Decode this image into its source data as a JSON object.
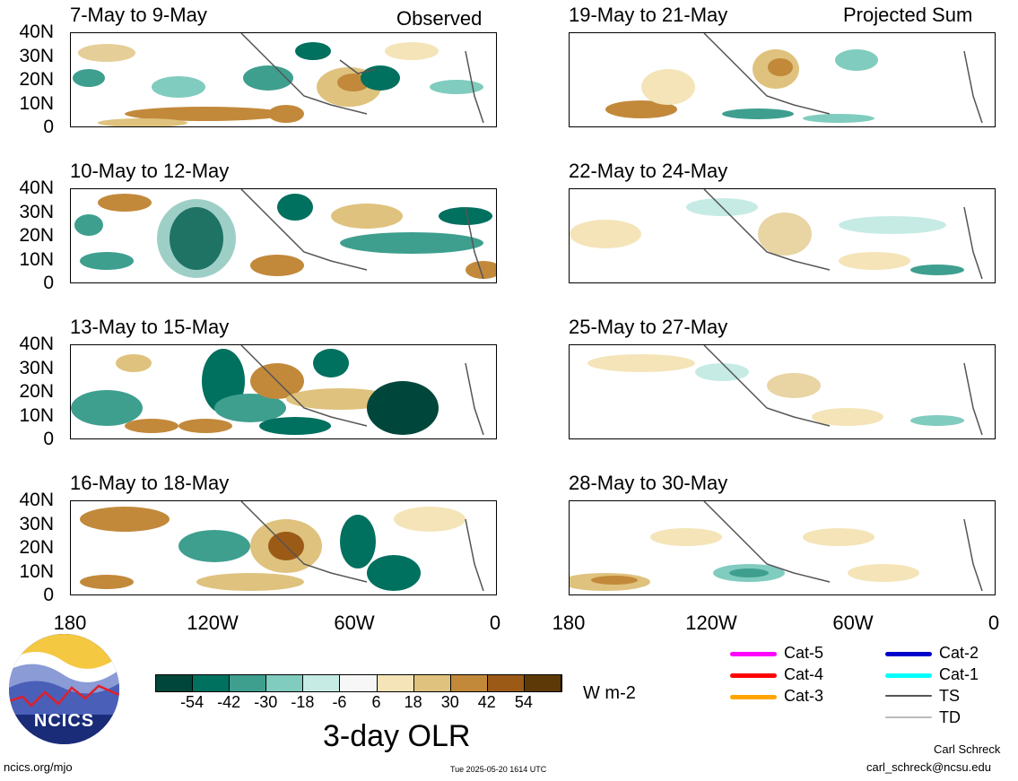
{
  "column_titles": {
    "observed": "Observed",
    "projected": "Projected Sum"
  },
  "panels_left": [
    {
      "period": "7-May to 9-May"
    },
    {
      "period": "10-May to 12-May"
    },
    {
      "period": "13-May to 15-May"
    },
    {
      "period": "16-May to 18-May"
    }
  ],
  "panels_right": [
    {
      "period": "19-May to 21-May"
    },
    {
      "period": "22-May to 24-May"
    },
    {
      "period": "25-May to 27-May"
    },
    {
      "period": "28-May to 30-May"
    }
  ],
  "lat_ticks": [
    "40N",
    "30N",
    "20N",
    "10N",
    "0"
  ],
  "lon_ticks": [
    "180",
    "120W",
    "60W",
    "0"
  ],
  "colorbar": {
    "tick_labels": [
      "-54",
      "-42",
      "-30",
      "-18",
      "-6",
      "6",
      "18",
      "30",
      "42",
      "54"
    ],
    "colors": [
      "#00463a",
      "#00705f",
      "#3e9f8f",
      "#80ccbe",
      "#c6ebe5",
      "#f7f7f7",
      "#f4e4b8",
      "#dfc27d",
      "#c2893b",
      "#9c5a17",
      "#5e3908"
    ],
    "units": "W m-2",
    "title": "3-day OLR"
  },
  "storm_legend": [
    {
      "label": "Cat-5",
      "color": "#ff00ff"
    },
    {
      "label": "Cat-4",
      "color": "#ff0000"
    },
    {
      "label": "Cat-3",
      "color": "#ffa500"
    },
    {
      "label": "Cat-2",
      "color": "#0000cc"
    },
    {
      "label": "Cat-1",
      "color": "#00ffff"
    },
    {
      "label": "TS",
      "color": "#555555"
    },
    {
      "label": "TD",
      "color": "#bbbbbb"
    }
  ],
  "logo_text": "NCICS",
  "footer": {
    "url": "ncics.org/mjo",
    "timestamp": "Tue 2025-05-20 1614 UTC",
    "author": "Carl Schreck",
    "email": "carl_schreck@ncsu.edu"
  }
}
